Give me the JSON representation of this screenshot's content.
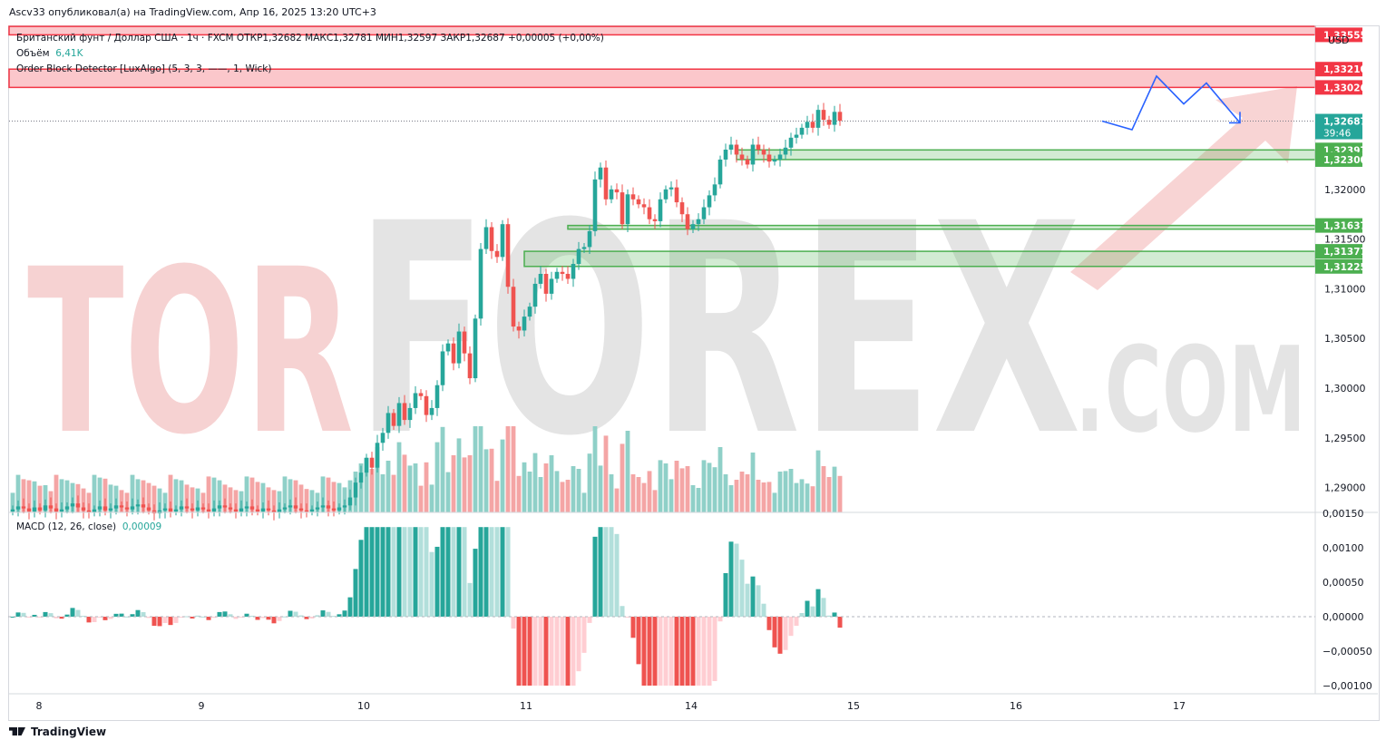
{
  "header": {
    "published_line": "Ascv33 опубликовал(а) на TradingView.com, Апр 16, 2025 13:20 UTC+3"
  },
  "legend": {
    "symbol_line": "Британский фунт / Доллар США · 1ч · FXCM  ОТКР1,32682  МАКС1,32781  МИН1,32597  ЗАКР1,32687  +0,00005 (+0,00%)",
    "volume_label": "Объём",
    "volume_value": "6,41K",
    "indicator_line": "Order Block Detector [LuxAlgo] (5, 3, 3, ——, 1, Wick)",
    "macd_label": "MACD (12, 26, close)",
    "macd_value": "0,00009"
  },
  "currency": "USD",
  "watermark": {
    "big": "TORFOREX",
    "small": ".COM"
  },
  "footer": {
    "brand": "TradingView"
  },
  "colors": {
    "up": "#26a69a",
    "down": "#ef5350",
    "up_light": "#b2dfdb",
    "down_light": "#ffcdd2",
    "bear_zone": "#f23645",
    "bull_zone": "#4caf50",
    "forecast": "#2962ff"
  },
  "chart_data": {
    "type": "candlestick",
    "symbol": "GBPUSD",
    "timeframe": "1h",
    "price_axis": {
      "min": 1.2875,
      "max": 1.3365,
      "ticks": [
        "1,29000",
        "1,29500",
        "1,30000",
        "1,30500",
        "1,31000",
        "1,31500",
        "1,32000"
      ]
    },
    "x_axis_labels": [
      "8",
      "9",
      "10",
      "11",
      "14",
      "15",
      "16",
      "17"
    ],
    "last_price": {
      "value": "1,32687",
      "countdown": "39:46"
    },
    "bearish_order_blocks": [
      {
        "top": 1.3364,
        "bottom": 1.33555,
        "label": "1,33555"
      },
      {
        "top": 1.3321,
        "bottom": 1.33026,
        "labels": [
          "1,33210",
          "1,33026"
        ]
      }
    ],
    "bullish_order_blocks": [
      {
        "top": 1.32397,
        "bottom": 1.323,
        "labels": [
          "1,32397",
          "1,32300"
        ],
        "from_index": 133
      },
      {
        "top": 1.31637,
        "bottom": 1.316,
        "labels": [
          "1,31637"
        ],
        "from_index": 102
      },
      {
        "top": 1.31377,
        "bottom": 1.31225,
        "labels": [
          "1,31377",
          "1,31225"
        ],
        "from_index": 94
      }
    ],
    "forecast_path": [
      1.32687,
      1.326,
      1.3314,
      1.3286,
      1.3307,
      1.3267
    ],
    "closes": [
      1.2878,
      1.2881,
      1.2879,
      1.2876,
      1.288,
      1.2877,
      1.2882,
      1.2879,
      1.2876,
      1.2878,
      1.2881,
      1.2884,
      1.288,
      1.2877,
      1.2875,
      1.2878,
      1.2881,
      1.2877,
      1.2879,
      1.2882,
      1.288,
      1.2878,
      1.2881,
      1.2883,
      1.288,
      1.2877,
      1.2874,
      1.2877,
      1.2879,
      1.2876,
      1.2878,
      1.2881,
      1.2879,
      1.2877,
      1.288,
      1.2878,
      1.2876,
      1.2879,
      1.2882,
      1.288,
      1.2878,
      1.2876,
      1.2879,
      1.2881,
      1.2878,
      1.2876,
      1.2879,
      1.2877,
      1.2875,
      1.2878,
      1.288,
      1.2882,
      1.2879,
      1.2877,
      1.2876,
      1.2878,
      1.288,
      1.2882,
      1.2879,
      1.2877,
      1.288,
      1.2882,
      1.289,
      1.2905,
      1.2915,
      1.293,
      1.292,
      1.2945,
      1.2955,
      1.2975,
      1.2962,
      1.2985,
      1.2968,
      1.298,
      1.2995,
      1.2992,
      1.2973,
      1.298,
      1.3003,
      1.3037,
      1.3045,
      1.3025,
      1.3057,
      1.3035,
      1.301,
      1.307,
      1.314,
      1.3162,
      1.3138,
      1.3132,
      1.3165,
      1.3102,
      1.3062,
      1.3058,
      1.3072,
      1.3082,
      1.3105,
      1.3115,
      1.3095,
      1.311,
      1.3117,
      1.3115,
      1.311,
      1.3125,
      1.314,
      1.3142,
      1.3158,
      1.321,
      1.3222,
      1.319,
      1.32,
      1.3197,
      1.3165,
      1.3195,
      1.319,
      1.3185,
      1.3182,
      1.317,
      1.3168,
      1.319,
      1.32,
      1.3202,
      1.3187,
      1.3175,
      1.316,
      1.3165,
      1.317,
      1.3182,
      1.3194,
      1.3205,
      1.323,
      1.324,
      1.3245,
      1.3235,
      1.323,
      1.3225,
      1.3245,
      1.324,
      1.3235,
      1.3228,
      1.323,
      1.3235,
      1.3242,
      1.3252,
      1.3255,
      1.3262,
      1.3268,
      1.3262,
      1.328,
      1.327,
      1.3265,
      1.3278,
      1.3269
    ]
  }
}
